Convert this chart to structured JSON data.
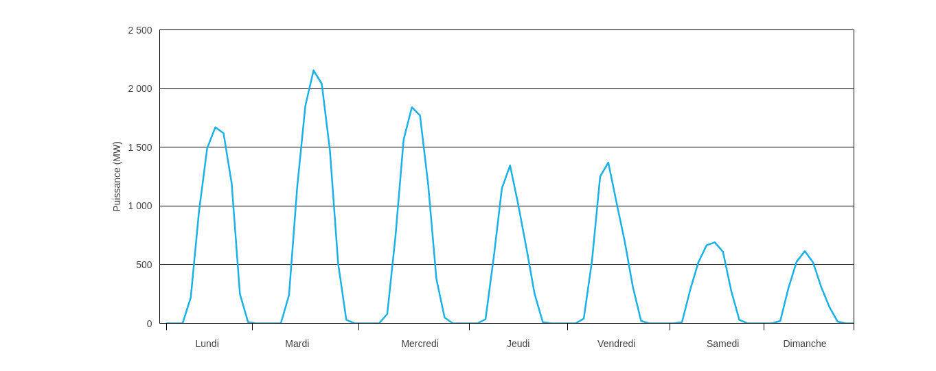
{
  "chart_data": {
    "type": "line",
    "ylabel": "Puissance (MW)",
    "categories": [
      null,
      null,
      null,
      null,
      null,
      "Lundi",
      null,
      null,
      null,
      null,
      null,
      null,
      null,
      null,
      null,
      null,
      "Mardi",
      null,
      null,
      null,
      null,
      null,
      null,
      null,
      null,
      null,
      null,
      null,
      null,
      null,
      null,
      "Mercredi",
      null,
      null,
      null,
      null,
      null,
      null,
      null,
      null,
      null,
      null,
      null,
      "Jeudi",
      null,
      null,
      null,
      null,
      null,
      null,
      null,
      null,
      null,
      null,
      null,
      "Vendredi",
      null,
      null,
      null,
      null,
      null,
      null,
      null,
      null,
      null,
      null,
      null,
      null,
      "Samedi",
      null,
      null,
      null,
      null,
      null,
      null,
      null,
      null,
      null,
      "Dimanche",
      null,
      null,
      null,
      null,
      null,
      null
    ],
    "series": [
      {
        "color": "#1ab0e8",
        "values": [
          0,
          0,
          0,
          220,
          950,
          1490,
          1670,
          1620,
          1190,
          250,
          10,
          0,
          0,
          0,
          0,
          240,
          1160,
          1855,
          2155,
          2040,
          1470,
          510,
          30,
          0,
          0,
          0,
          0,
          80,
          740,
          1565,
          1840,
          1770,
          1180,
          380,
          50,
          0,
          0,
          0,
          0,
          35,
          560,
          1150,
          1345,
          1010,
          640,
          250,
          10,
          0,
          0,
          0,
          0,
          40,
          530,
          1250,
          1370,
          1030,
          700,
          310,
          20,
          0,
          0,
          0,
          0,
          10,
          285,
          520,
          665,
          690,
          610,
          280,
          30,
          0,
          0,
          0,
          0,
          20,
          300,
          525,
          615,
          520,
          310,
          140,
          15,
          0,
          0
        ]
      }
    ],
    "ylim": [
      0,
      2500
    ],
    "yticks": [
      0,
      500,
      {
        "value": 1000,
        "label": "1 000"
      },
      {
        "value": 1500,
        "label": "1 500"
      },
      {
        "value": 2000,
        "label": "2 000"
      },
      {
        "value": 2500,
        "label": "2 500"
      }
    ],
    "grid": "y"
  }
}
